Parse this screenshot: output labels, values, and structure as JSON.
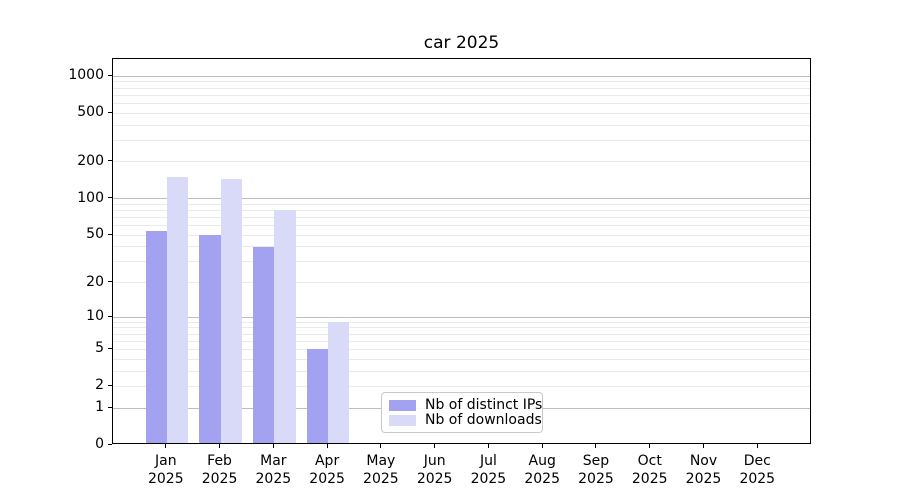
{
  "title": "car 2025",
  "chart_data": {
    "type": "bar",
    "title": "car 2025",
    "categories": [
      "Jan 2025",
      "Feb 2025",
      "Mar 2025",
      "Apr 2025",
      "May 2025",
      "Jun 2025",
      "Jul 2025",
      "Aug 2025",
      "Sep 2025",
      "Oct 2025",
      "Nov 2025",
      "Dec 2025"
    ],
    "series": [
      {
        "name": "Nb of distinct IPs",
        "color": "#a2a2f0",
        "values": [
          54,
          50,
          40,
          5,
          0,
          0,
          0,
          0,
          0,
          0,
          0,
          0
        ]
      },
      {
        "name": "Nb of downloads",
        "color": "#d9d9f8",
        "values": [
          152,
          145,
          80,
          9,
          0,
          0,
          0,
          0,
          0,
          0,
          0,
          0
        ]
      }
    ],
    "xlabel": "",
    "ylabel": "",
    "yscale": "log1p",
    "ylim": [
      0,
      1370
    ],
    "y_ticks": [
      0,
      1,
      2,
      5,
      10,
      20,
      50,
      100,
      200,
      500,
      1000
    ],
    "grid": "horizontal major (1,10,100,1000) + minor (2-9 per decade)",
    "legend_position": "lower center inside plot"
  },
  "colors": {
    "distinct_ips": "#a2a2f0",
    "downloads": "#d9d9f8",
    "grid_major": "#bdbdbd",
    "grid_minor": "#eaeaea",
    "spine": "#000000",
    "background": "#ffffff"
  }
}
